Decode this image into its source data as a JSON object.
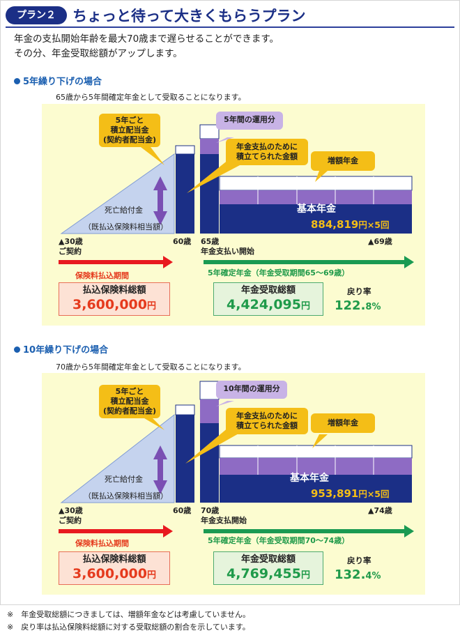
{
  "header": {
    "badge": "プラン２",
    "title": "ちょっと待って大きくもらうプラン"
  },
  "intro": {
    "line1": "年金の支払開始年齢を最大70歳まで遅らせることができます。",
    "line2": "その分、年金受取総額がアップします。"
  },
  "plans": [
    {
      "heading": "5年繰り下げの場合",
      "note": "65歳から5年間確定年金として受取ることになります。",
      "callout_dividend": [
        "5年ごと",
        "積立配当金",
        "(契約者配当金)"
      ],
      "callout_interest": "5年間の運用分",
      "callout_reserve": [
        "年金支払のために",
        "積立てられた金額"
      ],
      "callout_bonus": "増額年金",
      "death_benefit": [
        "死亡給付金",
        "（既払込保険料相当額）"
      ],
      "age_start": "▲30歳",
      "age_start_sub": "ご契約",
      "age_pay_end": "60歳",
      "age_pension_start": "65歳",
      "age_pension_start_sub": "年金支払い開始",
      "age_end": "▲69歳",
      "premium_period": "保険料払込期間",
      "pension_period": "5年確定年金（年金受取期間65～69歳）",
      "basic_pension": "基本年金",
      "annual_amount": "884,819",
      "annual_suffix": "円×5回",
      "premium_total_label": "払込保険料総額",
      "premium_total": "3,600,000",
      "yen": "円",
      "pension_total_label": "年金受取総額",
      "pension_total": "4,424,095",
      "return_rate_label": "戻り率",
      "return_rate_int": "122.",
      "return_rate_dec": "8%"
    },
    {
      "heading": "10年繰り下げの場合",
      "note": "70歳から5年間確定年金として受取ることになります。",
      "callout_dividend": [
        "5年ごと",
        "積立配当金",
        "(契約者配当金)"
      ],
      "callout_interest": "10年間の運用分",
      "callout_reserve": [
        "年金支払のために",
        "積立てられた金額"
      ],
      "callout_bonus": "増額年金",
      "death_benefit": [
        "死亡給付金",
        "（既払込保険料相当額）"
      ],
      "age_start": "▲30歳",
      "age_start_sub": "ご契約",
      "age_pay_end": "60歳",
      "age_pension_start": "70歳",
      "age_pension_start_sub": "年金支払開始",
      "age_end": "▲74歳",
      "premium_period": "保険料払込期間",
      "pension_period": "5年確定年金（年金受取期間70～74歳）",
      "basic_pension": "基本年金",
      "annual_amount": "953,891",
      "annual_suffix": "円×5回",
      "premium_total_label": "払込保険料総額",
      "premium_total": "3,600,000",
      "yen": "円",
      "pension_total_label": "年金受取総額",
      "pension_total": "4,769,455",
      "return_rate_label": "戻り率",
      "return_rate_int": "132.",
      "return_rate_dec": "4%"
    }
  ],
  "footnotes": [
    "※　年金受取総額につきましては、増額年金などは考慮していません。",
    "※　戻り率は払込保険料総額に対する受取総額の割合を示しています。"
  ],
  "colors": {
    "navy": "#1b2f86",
    "purple": "#8e6bc4",
    "gold": "#f4be17",
    "red_arrow": "#e8191f",
    "green_arrow": "#1a9a52",
    "panel_bg": "#fcfcd0"
  }
}
